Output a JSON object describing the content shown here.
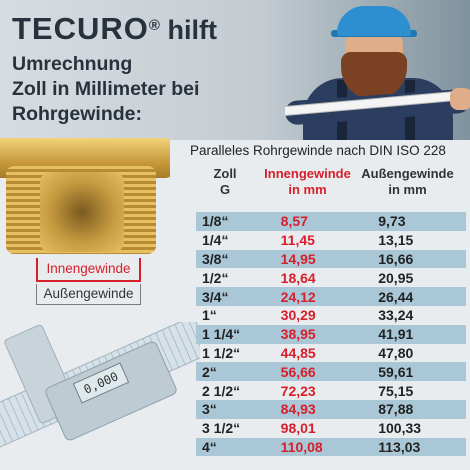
{
  "header": {
    "brand": "TECURO",
    "registered": "®",
    "brand_suffix": "hilft",
    "subtitle_lines": [
      "Umrechnung",
      "Zoll in Millimeter bei",
      "Rohrgewinde:"
    ]
  },
  "fitting": {
    "inner_label": "Innengewinde",
    "outer_label": "Außengewinde"
  },
  "caliper": {
    "display": "0,000"
  },
  "table": {
    "title": "Paralleles Rohrgewinde nach DIN ISO 228",
    "headers": {
      "zoll": [
        "Zoll",
        "G"
      ],
      "inner": [
        "Innengewinde",
        "in mm"
      ],
      "outer": [
        "Außengewinde",
        "in mm"
      ]
    },
    "rows": [
      {
        "zoll": "1/8“",
        "inner": "8,57",
        "outer": "9,73"
      },
      {
        "zoll": "1/4“",
        "inner": "11,45",
        "outer": "13,15"
      },
      {
        "zoll": "3/8“",
        "inner": "14,95",
        "outer": "16,66"
      },
      {
        "zoll": "1/2“",
        "inner": "18,64",
        "outer": "20,95"
      },
      {
        "zoll": "3/4“",
        "inner": "24,12",
        "outer": "26,44"
      },
      {
        "zoll": "1“",
        "inner": "30,29",
        "outer": "33,24"
      },
      {
        "zoll": "1 1/4“",
        "inner": "38,95",
        "outer": "41,91"
      },
      {
        "zoll": "1 1/2“",
        "inner": "44,85",
        "outer": "47,80"
      },
      {
        "zoll": "2“",
        "inner": "56,66",
        "outer": "59,61"
      },
      {
        "zoll": "2 1/2“",
        "inner": "72,23",
        "outer": "75,15"
      },
      {
        "zoll": "3“",
        "inner": "84,93",
        "outer": "87,88"
      },
      {
        "zoll": "3 1/2“",
        "inner": "98,01",
        "outer": "100,33"
      },
      {
        "zoll": "4“",
        "inner": "110,08",
        "outer": "113,03"
      }
    ]
  },
  "colors": {
    "accent_red": "#d81e2a",
    "row_shade": "#a9c7d6",
    "text_dark": "#27323c"
  }
}
